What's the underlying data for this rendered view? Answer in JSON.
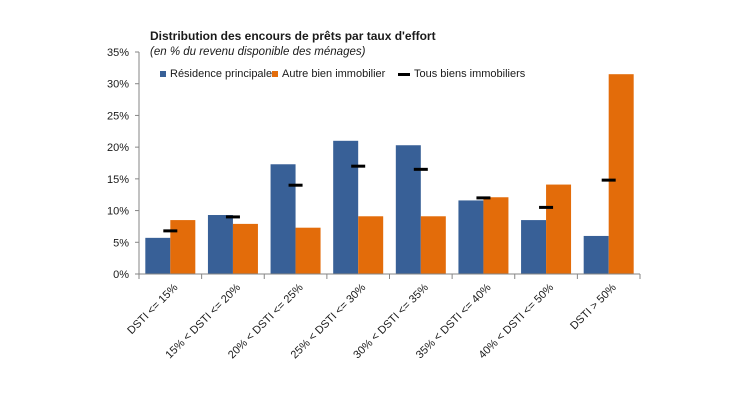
{
  "chart_data": {
    "type": "bar",
    "title": "Distribution des encours de prêts par taux d'effort",
    "subtitle": "(en % du revenu disponible des ménages)",
    "categories": [
      "DSTI <= 15%",
      "15% < DSTI <= 20%",
      "20% < DSTI <= 25%",
      "25% < DSTI <= 30%",
      "30% < DSTI <= 35%",
      "35% < DSTI <= 40%",
      "40% < DSTI <= 50%",
      "DSTI > 50%"
    ],
    "series": [
      {
        "name": "Résidence principale",
        "kind": "bar",
        "color": "#386097",
        "values": [
          5.7,
          9.3,
          17.3,
          21.0,
          20.3,
          11.6,
          8.5,
          6.0
        ]
      },
      {
        "name": "Autre bien immobilier",
        "kind": "bar",
        "color": "#E36C0A",
        "values": [
          8.5,
          7.9,
          7.3,
          9.1,
          9.1,
          12.1,
          14.1,
          31.5
        ]
      },
      {
        "name": "Tous biens immobiliers",
        "kind": "marker",
        "color": "#000000",
        "values": [
          6.8,
          9.0,
          14.0,
          17.0,
          16.5,
          12.0,
          10.5,
          14.8
        ]
      }
    ],
    "yticks": [
      "0%",
      "5%",
      "10%",
      "15%",
      "20%",
      "25%",
      "30%",
      "35%"
    ],
    "ylim": [
      0,
      35
    ],
    "grid": false,
    "legend_position": "top"
  }
}
